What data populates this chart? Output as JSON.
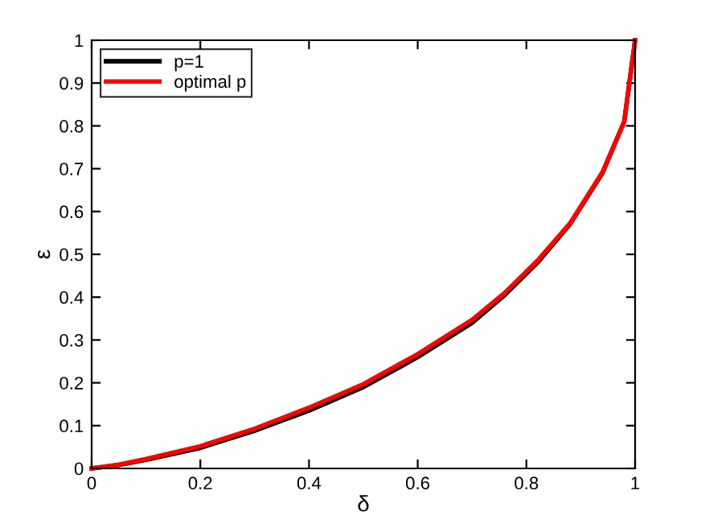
{
  "chart_data": {
    "type": "line",
    "xlabel": "δ",
    "ylabel": "ε",
    "x": [
      0,
      0.05,
      0.1,
      0.2,
      0.3,
      0.4,
      0.5,
      0.6,
      0.7,
      0.76,
      0.82,
      0.88,
      0.94,
      0.98,
      1
    ],
    "series": [
      {
        "name": "p=1",
        "color": "#000000",
        "values": [
          0,
          0.008,
          0.02,
          0.048,
          0.088,
          0.135,
          0.19,
          0.26,
          0.34,
          0.405,
          0.48,
          0.57,
          0.69,
          0.81,
          1
        ]
      },
      {
        "name": "optimal p",
        "color": "#ff0000",
        "values": [
          0,
          0.009,
          0.022,
          0.052,
          0.093,
          0.142,
          0.197,
          0.267,
          0.347,
          0.41,
          0.485,
          0.572,
          0.692,
          0.81,
          1
        ]
      }
    ],
    "xlim": [
      0,
      1
    ],
    "ylim": [
      0,
      1
    ],
    "xticks": [
      0,
      0.2,
      0.4,
      0.6,
      0.8,
      1
    ],
    "yticks": [
      0,
      0.1,
      0.2,
      0.3,
      0.4,
      0.5,
      0.6,
      0.7,
      0.8,
      0.9,
      1
    ],
    "grid": false,
    "legend": "top left",
    "marker": "none",
    "line_style": "solid"
  }
}
